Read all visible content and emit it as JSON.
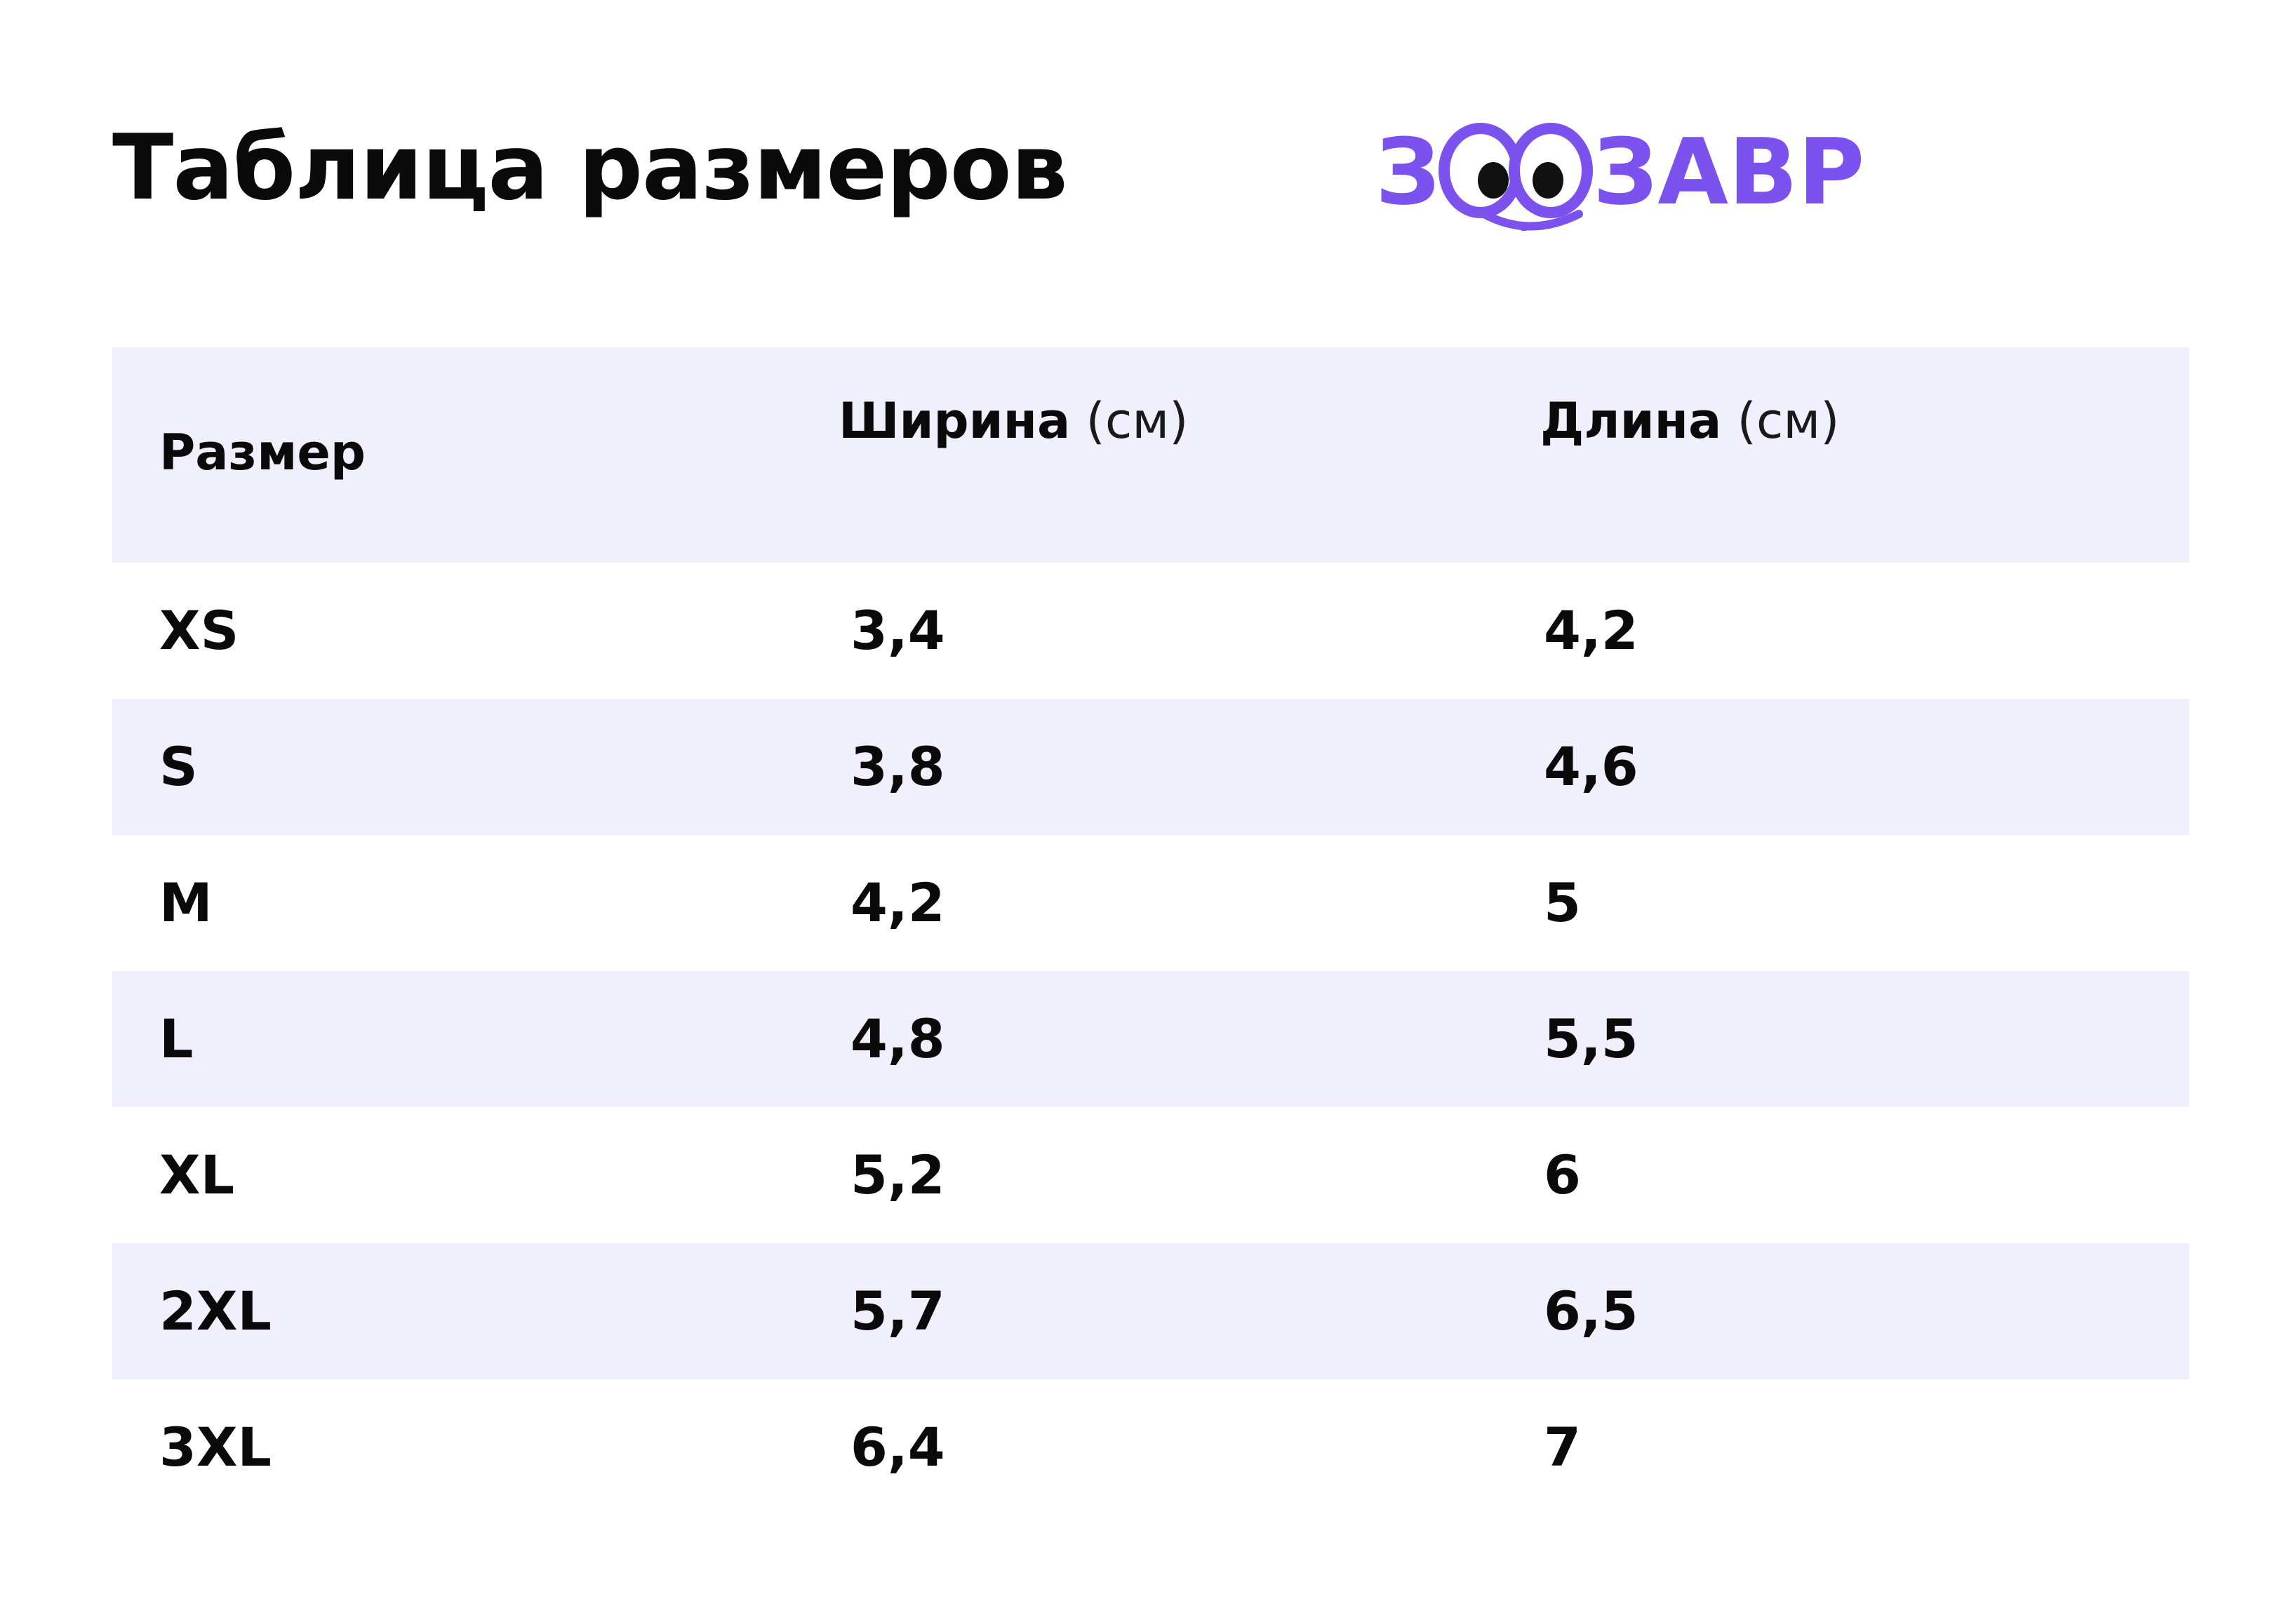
{
  "page": {
    "title": "Таблица размеров"
  },
  "logo": {
    "text": "ЗООЗАВР",
    "color": "#7b52ee"
  },
  "table": {
    "headers": [
      {
        "label": "Размер",
        "unit": ""
      },
      {
        "label": "Ширина",
        "unit": "(см)"
      },
      {
        "label": "Длина",
        "unit": "(см)"
      }
    ],
    "rows": [
      {
        "size": "XS",
        "width": "3,4",
        "length": "4,2"
      },
      {
        "size": "S",
        "width": "3,8",
        "length": "4,6"
      },
      {
        "size": "M",
        "width": "4,2",
        "length": "5"
      },
      {
        "size": "L",
        "width": "4,8",
        "length": "5,5"
      },
      {
        "size": "XL",
        "width": "5,2",
        "length": "6"
      },
      {
        "size": "2XL",
        "width": "5,7",
        "length": "6,5"
      },
      {
        "size": "3XL",
        "width": "6,4",
        "length": "7"
      }
    ],
    "stripe_color": "#f0effc"
  }
}
